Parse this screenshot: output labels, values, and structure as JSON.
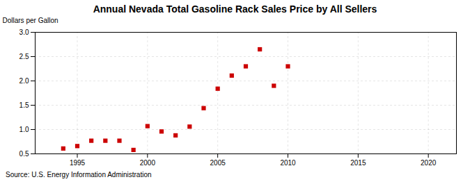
{
  "chart_data": {
    "type": "scatter",
    "title": "Annual Nevada Total Gasoline Rack Sales Price by All Sellers",
    "ylabel": "Dollars per Gallon",
    "source": "Source: U.S. Energy Information Administration",
    "x": [
      1994,
      1995,
      1996,
      1997,
      1998,
      1999,
      2000,
      2001,
      2002,
      2003,
      2004,
      2005,
      2006,
      2007,
      2008,
      2009,
      2010
    ],
    "values": [
      0.61,
      0.66,
      0.77,
      0.77,
      0.77,
      0.58,
      1.07,
      0.96,
      0.88,
      1.06,
      1.44,
      1.84,
      2.11,
      2.3,
      2.65,
      1.9,
      2.3
    ],
    "color": "#cc0000",
    "marker": "square",
    "xlim": [
      1992,
      2022
    ],
    "ylim": [
      0.5,
      3.0
    ],
    "xticks": [
      1995,
      2000,
      2005,
      2010,
      2015,
      2020
    ],
    "yticks": [
      0.5,
      {
        "value": 1.0,
        "label": "1.0"
      },
      1.5,
      {
        "value": 2.0,
        "label": "2.0"
      },
      2.5,
      {
        "value": 3.0,
        "label": "3.0"
      }
    ],
    "grid": true
  }
}
